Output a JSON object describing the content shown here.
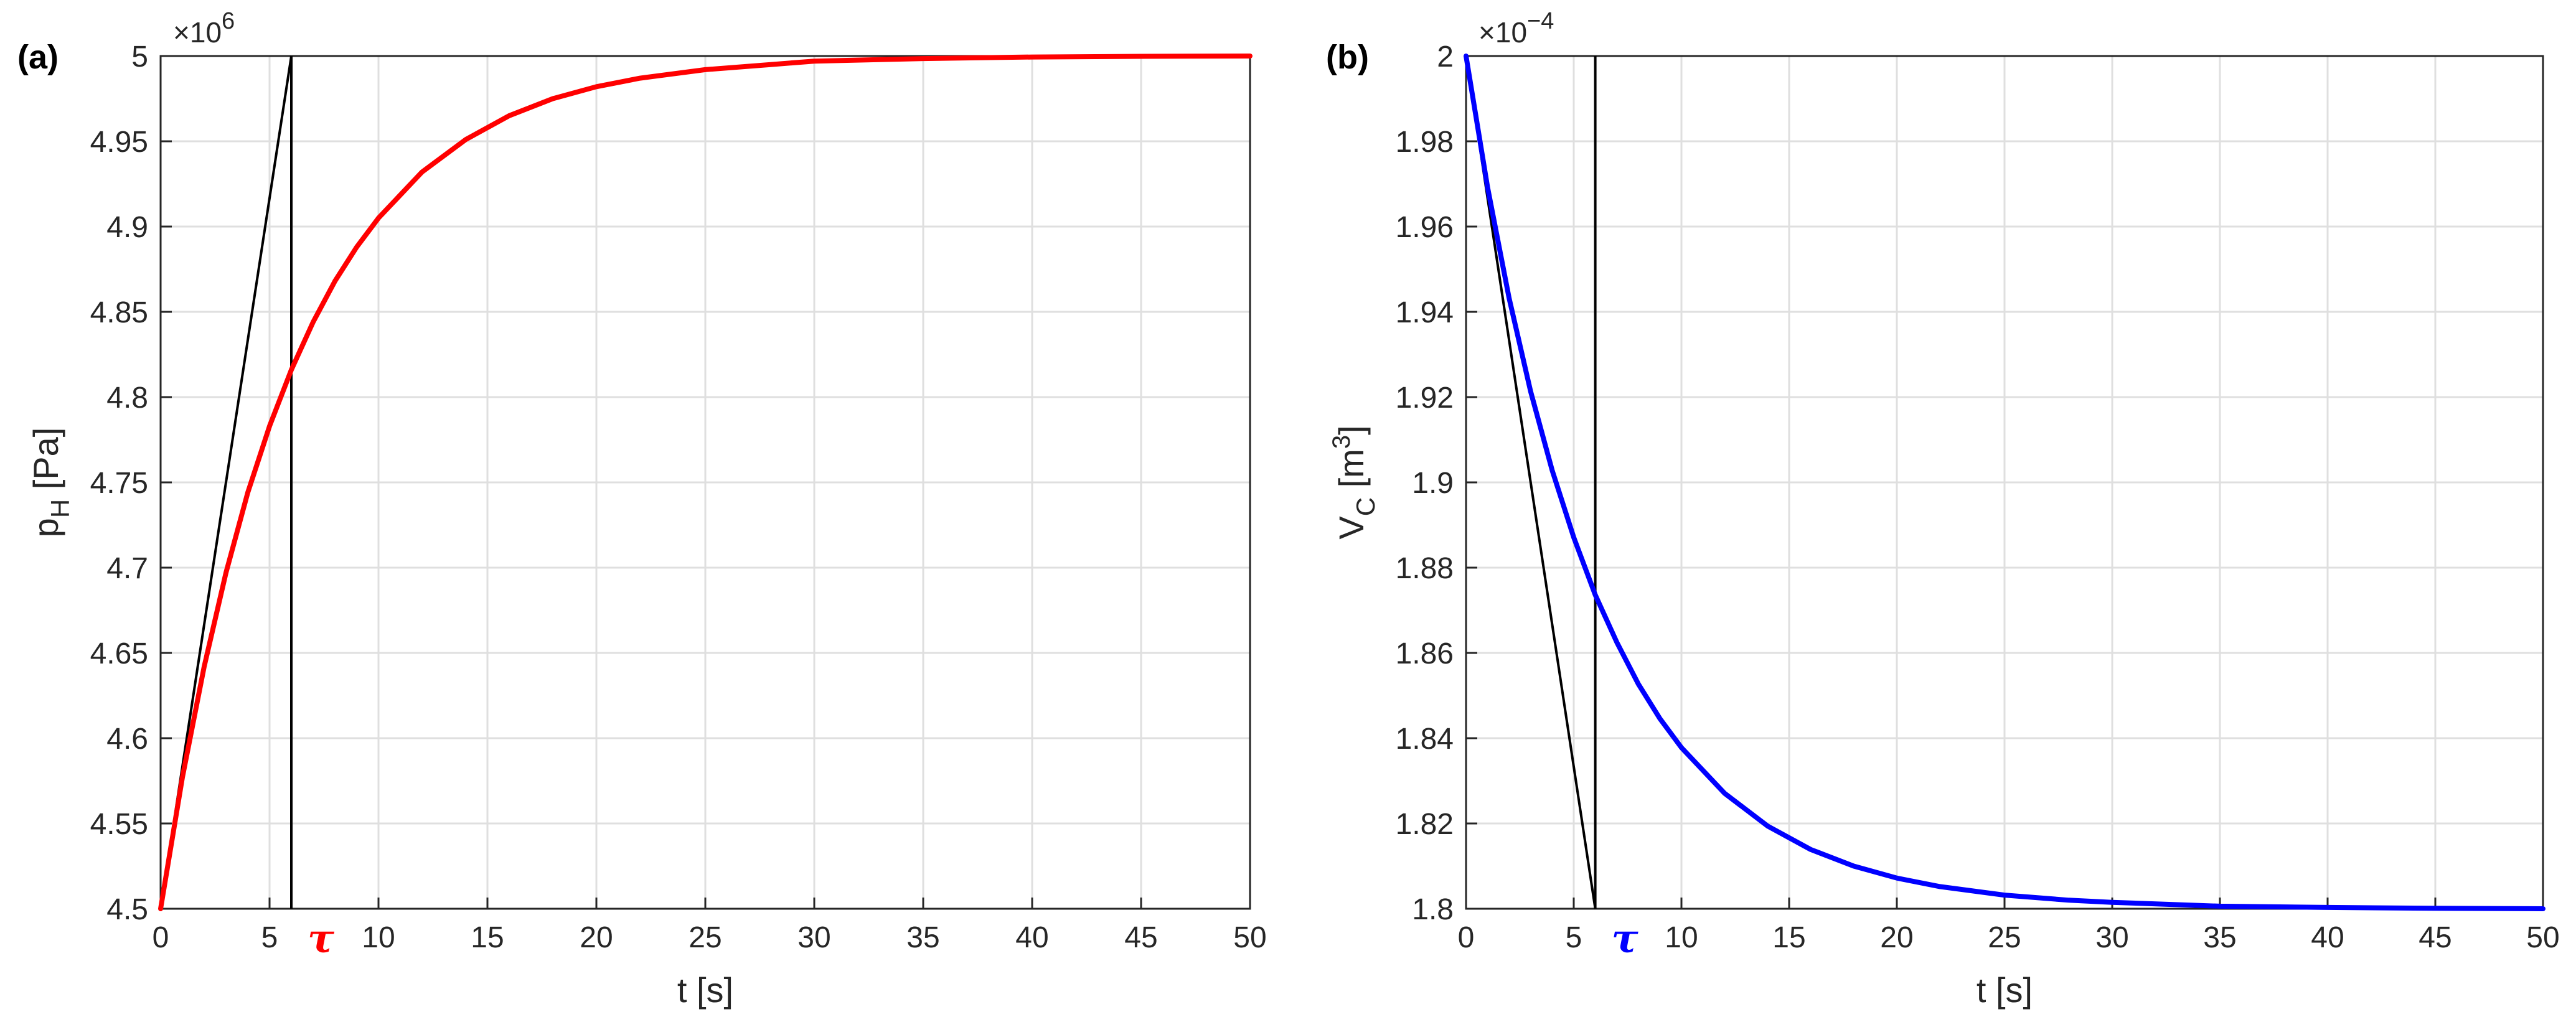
{
  "chart_data": [
    {
      "type": "line",
      "panel_label": "(a)",
      "xlabel": "t [s]",
      "ylabel_main": "p",
      "ylabel_sub": "H",
      "ylabel_sup": "",
      "ylabel_unit_pre": " [Pa]",
      "ylabel_unit_post": "",
      "exponent_base": "×10",
      "exponent_power": "6",
      "xlim": [
        0,
        50
      ],
      "ylim": [
        4.5,
        5.0
      ],
      "xticks": [
        0,
        5,
        10,
        15,
        20,
        25,
        30,
        35,
        40,
        45,
        50
      ],
      "xtick_labels": [
        "0",
        "5",
        "10",
        "15",
        "20",
        "25",
        "30",
        "35",
        "40",
        "45",
        "50"
      ],
      "yticks": [
        4.5,
        4.55,
        4.6,
        4.65,
        4.7,
        4.75,
        4.8,
        4.85,
        4.9,
        4.95,
        5.0
      ],
      "ytick_labels": [
        "4.5",
        "4.55",
        "4.6",
        "4.65",
        "4.7",
        "4.75",
        "4.8",
        "4.85",
        "4.9",
        "4.95",
        "5"
      ],
      "grid": true,
      "tau": 6,
      "tau_label": "τ",
      "tau_color": "#ff0000",
      "series": [
        {
          "color": "#ff0000",
          "x": [
            0,
            1,
            2,
            3,
            4,
            5,
            6,
            7,
            8,
            9,
            10,
            12,
            14,
            16,
            18,
            20,
            22,
            25,
            28,
            30,
            35,
            40,
            45,
            50
          ],
          "y": [
            4.5,
            4.577,
            4.642,
            4.697,
            4.744,
            4.783,
            4.816,
            4.844,
            4.868,
            4.888,
            4.905,
            4.932,
            4.951,
            4.965,
            4.975,
            4.982,
            4.987,
            4.992,
            4.995,
            4.997,
            4.9985,
            4.9994,
            4.9998,
            5.0
          ]
        }
      ],
      "tangent": {
        "color": "#000000",
        "x": [
          0,
          6
        ],
        "y": [
          4.5,
          5.0
        ]
      },
      "vline": {
        "color": "#000000",
        "x": 6,
        "y": [
          4.5,
          5.0
        ]
      }
    },
    {
      "type": "line",
      "panel_label": "(b)",
      "xlabel": "t [s]",
      "ylabel_main": "V",
      "ylabel_sub": "C",
      "ylabel_sup": "3",
      "ylabel_unit_pre": " [m",
      "ylabel_unit_post": "]",
      "exponent_base": "×10",
      "exponent_power": "−4",
      "xlim": [
        0,
        50
      ],
      "ylim": [
        1.8,
        2.0
      ],
      "xticks": [
        0,
        5,
        10,
        15,
        20,
        25,
        30,
        35,
        40,
        45,
        50
      ],
      "xtick_labels": [
        "0",
        "5",
        "10",
        "15",
        "20",
        "25",
        "30",
        "35",
        "40",
        "45",
        "50"
      ],
      "yticks": [
        1.8,
        1.82,
        1.84,
        1.86,
        1.88,
        1.9,
        1.92,
        1.94,
        1.96,
        1.98,
        2.0
      ],
      "ytick_labels": [
        "1.8",
        "1.82",
        "1.84",
        "1.86",
        "1.88",
        "1.9",
        "1.92",
        "1.94",
        "1.96",
        "1.98",
        "2"
      ],
      "grid": true,
      "tau": 6,
      "tau_label": "τ",
      "tau_color": "#0000ff",
      "series": [
        {
          "color": "#0000ff",
          "x": [
            0,
            1,
            2,
            3,
            4,
            5,
            6,
            7,
            8,
            9,
            10,
            12,
            14,
            16,
            18,
            20,
            22,
            25,
            28,
            30,
            35,
            40,
            45,
            50
          ],
          "y": [
            2.0,
            1.9692,
            1.9432,
            1.9213,
            1.9028,
            1.8871,
            1.8736,
            1.8625,
            1.8527,
            1.8446,
            1.8378,
            1.8271,
            1.8194,
            1.8139,
            1.81,
            1.8072,
            1.8052,
            1.8032,
            1.802,
            1.8015,
            1.8006,
            1.8003,
            1.8001,
            1.8
          ]
        }
      ],
      "tangent": {
        "color": "#000000",
        "x": [
          0,
          6
        ],
        "y": [
          2.0,
          1.8
        ]
      },
      "vline": {
        "color": "#000000",
        "x": 6,
        "y": [
          1.8,
          2.0
        ]
      }
    }
  ]
}
